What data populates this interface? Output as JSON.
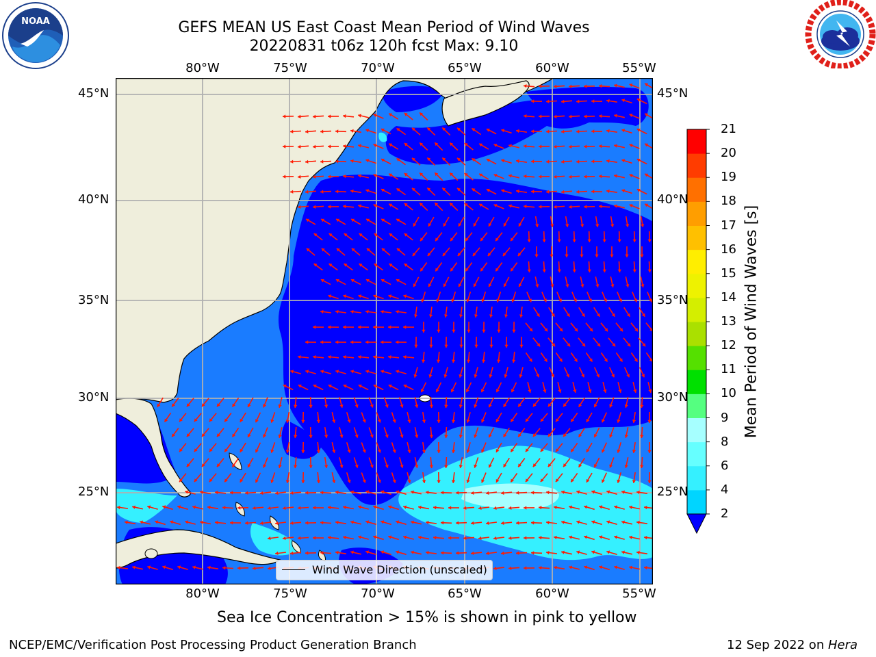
{
  "header": {
    "title": "GEFS MEAN US East Coast Mean Period of Wind Waves",
    "subtitle": "20220831 t06z 120h fcst   Max: 9.10"
  },
  "logos": {
    "left": {
      "name": "noaa-logo",
      "text": "NOAA",
      "ring_text": "NATIONAL OCEANIC AND ATMOSPHERIC ADMINISTRATION · U.S. DEPARTMENT OF COMMERCE"
    },
    "right": {
      "name": "nws-logo",
      "ring_text": "NATIONAL WEATHER SERVICE"
    }
  },
  "map": {
    "lon_labels": [
      "80°W",
      "75°W",
      "70°W",
      "65°W",
      "60°W",
      "55°W"
    ],
    "lat_labels": [
      "45°N",
      "40°N",
      "35°N",
      "30°N",
      "25°N"
    ],
    "extent": {
      "lon_min": -85,
      "lon_max": -54.2,
      "lat_min": 20.4,
      "lat_max": 45.8
    },
    "gridlines": true,
    "legend": {
      "label": "Wind Wave Direction (unscaled)",
      "placement": "lower-center"
    },
    "arrow_color": "#ff1a00",
    "land_color": "#efeedc"
  },
  "colorbar": {
    "label": "Mean Period of Wind Waves [s]",
    "ticks": [
      "2",
      "4",
      "6",
      "8",
      "9",
      "10",
      "11",
      "12",
      "13",
      "14",
      "15",
      "16",
      "17",
      "18",
      "19",
      "20",
      "21"
    ],
    "colors": [
      "#1a7cff",
      "#00d5ff",
      "#35f0ff",
      "#66ffff",
      "#a6ffff",
      "#55ff80",
      "#00e000",
      "#55e000",
      "#aae000",
      "#d4ee00",
      "#eef200",
      "#ffee00",
      "#ffc000",
      "#ff9e00",
      "#ff7000",
      "#ff3c00",
      "#ff0000"
    ],
    "under_color": "#0000ff"
  },
  "notes": {
    "ice": "Sea Ice Concentration > 15% is shown in pink to yellow"
  },
  "footer": {
    "left": "NCEP/EMC/Verification Post Processing Product Generation Branch",
    "date": "12 Sep 2022 on",
    "machine": "Hera"
  }
}
